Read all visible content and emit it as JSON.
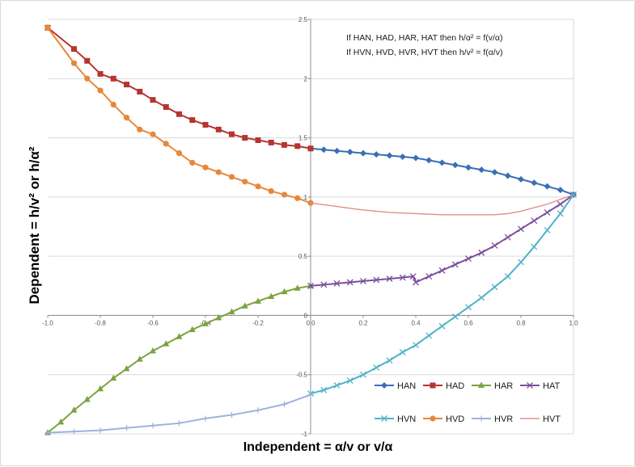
{
  "chart_data": {
    "type": "line",
    "annotations": [
      "If HAN, HAD, HAR, HAT then h/α² = f(v/α)",
      "If HVN, HVD, HVR, HVT then h/v² = f(α/v)"
    ],
    "xlabel": "Independent = α/v or v/α",
    "ylabel": "Dependent = h/v² or h/α²",
    "xlim": [
      -1.0,
      1.0
    ],
    "ylim": [
      -1.0,
      2.5
    ],
    "x_ticks": [
      "-1.0",
      "-0.8",
      "-0.6",
      "-0.4",
      "-0.2",
      "0.0",
      "0.2",
      "0.4",
      "0.6",
      "0.8",
      "1.0"
    ],
    "y_ticks": [
      "-1",
      "-0.5",
      "0",
      "0.5",
      "1",
      "1.5",
      "2",
      "2.5"
    ],
    "grid": true,
    "legend_position": "bottom-right",
    "series": [
      {
        "name": "HAN",
        "color": "#3a6fb5",
        "marker": "diamond",
        "x": [
          0.0,
          0.05,
          0.1,
          0.15,
          0.2,
          0.25,
          0.3,
          0.35,
          0.4,
          0.45,
          0.5,
          0.55,
          0.6,
          0.65,
          0.7,
          0.75,
          0.8,
          0.85,
          0.9,
          0.95,
          1.0
        ],
        "y": [
          1.41,
          1.4,
          1.39,
          1.38,
          1.37,
          1.36,
          1.35,
          1.34,
          1.33,
          1.31,
          1.29,
          1.27,
          1.25,
          1.23,
          1.21,
          1.18,
          1.15,
          1.12,
          1.09,
          1.06,
          1.02
        ]
      },
      {
        "name": "HAD",
        "color": "#b5352f",
        "marker": "square",
        "x": [
          -1.0,
          -0.9,
          -0.85,
          -0.8,
          -0.75,
          -0.7,
          -0.65,
          -0.6,
          -0.55,
          -0.5,
          -0.45,
          -0.4,
          -0.35,
          -0.3,
          -0.25,
          -0.2,
          -0.15,
          -0.1,
          -0.05,
          0.0
        ],
        "y": [
          2.43,
          2.25,
          2.15,
          2.04,
          2.0,
          1.95,
          1.89,
          1.82,
          1.76,
          1.7,
          1.65,
          1.61,
          1.57,
          1.53,
          1.5,
          1.48,
          1.46,
          1.44,
          1.43,
          1.41
        ]
      },
      {
        "name": "HAR",
        "color": "#7ba33f",
        "marker": "triangle",
        "x": [
          -1.0,
          -0.95,
          -0.9,
          -0.85,
          -0.8,
          -0.75,
          -0.7,
          -0.65,
          -0.6,
          -0.55,
          -0.5,
          -0.45,
          -0.4,
          -0.35,
          -0.3,
          -0.25,
          -0.2,
          -0.15,
          -0.1,
          -0.05,
          0.0
        ],
        "y": [
          -0.99,
          -0.9,
          -0.8,
          -0.71,
          -0.62,
          -0.53,
          -0.45,
          -0.37,
          -0.3,
          -0.24,
          -0.18,
          -0.12,
          -0.07,
          -0.02,
          0.03,
          0.08,
          0.12,
          0.16,
          0.2,
          0.23,
          0.25
        ]
      },
      {
        "name": "HAT",
        "color": "#7a4f9e",
        "marker": "x",
        "x": [
          0.0,
          0.05,
          0.1,
          0.15,
          0.2,
          0.25,
          0.3,
          0.35,
          0.39,
          0.4,
          0.45,
          0.5,
          0.55,
          0.6,
          0.65,
          0.7,
          0.75,
          0.8,
          0.85,
          0.9,
          0.95,
          1.0
        ],
        "y": [
          0.25,
          0.26,
          0.27,
          0.28,
          0.29,
          0.3,
          0.31,
          0.32,
          0.33,
          0.28,
          0.33,
          0.38,
          0.43,
          0.48,
          0.53,
          0.59,
          0.66,
          0.73,
          0.8,
          0.87,
          0.94,
          1.02
        ]
      },
      {
        "name": "HVN",
        "color": "#4fb3c6",
        "marker": "x",
        "x": [
          0.0,
          0.05,
          0.1,
          0.15,
          0.2,
          0.25,
          0.3,
          0.35,
          0.4,
          0.45,
          0.5,
          0.55,
          0.6,
          0.65,
          0.7,
          0.75,
          0.8,
          0.85,
          0.9,
          0.95,
          1.0
        ],
        "y": [
          -0.66,
          -0.63,
          -0.59,
          -0.55,
          -0.5,
          -0.44,
          -0.38,
          -0.31,
          -0.25,
          -0.17,
          -0.09,
          -0.01,
          0.07,
          0.15,
          0.24,
          0.33,
          0.45,
          0.58,
          0.72,
          0.86,
          1.02
        ]
      },
      {
        "name": "HVD",
        "color": "#e7873a",
        "marker": "circle",
        "x": [
          -1.0,
          -0.9,
          -0.85,
          -0.8,
          -0.75,
          -0.7,
          -0.65,
          -0.6,
          -0.55,
          -0.5,
          -0.45,
          -0.4,
          -0.35,
          -0.3,
          -0.25,
          -0.2,
          -0.15,
          -0.1,
          -0.05,
          0.0
        ],
        "y": [
          2.43,
          2.13,
          2.0,
          1.9,
          1.78,
          1.67,
          1.57,
          1.53,
          1.45,
          1.37,
          1.29,
          1.25,
          1.21,
          1.17,
          1.13,
          1.09,
          1.05,
          1.02,
          0.99,
          0.95
        ]
      },
      {
        "name": "HVR",
        "color": "#9db2dc",
        "marker": "plus",
        "x": [
          -1.0,
          -0.9,
          -0.8,
          -0.7,
          -0.6,
          -0.5,
          -0.4,
          -0.3,
          -0.2,
          -0.1,
          0.0
        ],
        "y": [
          -0.99,
          -0.98,
          -0.97,
          -0.95,
          -0.93,
          -0.91,
          -0.87,
          -0.84,
          -0.8,
          -0.75,
          -0.67
        ]
      },
      {
        "name": "HVT",
        "color": "#e0908b",
        "marker": "none",
        "x": [
          0.0,
          0.1,
          0.2,
          0.3,
          0.4,
          0.5,
          0.6,
          0.7,
          0.75,
          0.8,
          0.9,
          1.0
        ],
        "y": [
          0.95,
          0.92,
          0.89,
          0.87,
          0.86,
          0.85,
          0.85,
          0.85,
          0.86,
          0.88,
          0.94,
          1.02
        ]
      }
    ]
  }
}
